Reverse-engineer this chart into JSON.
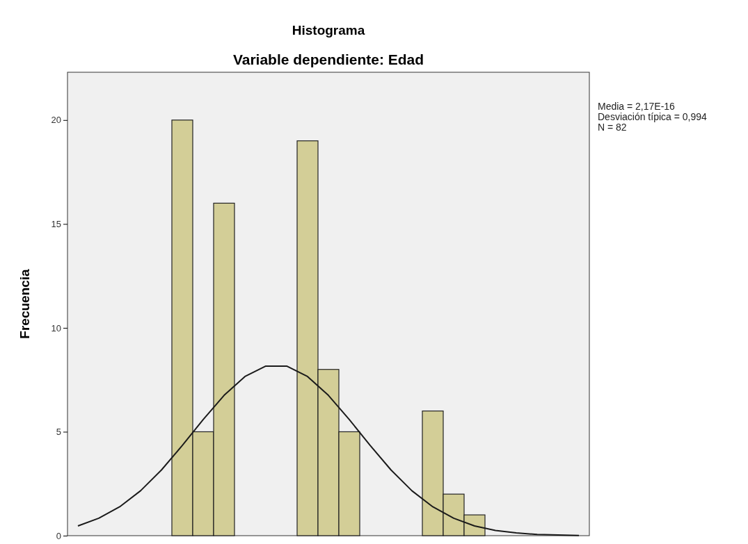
{
  "chart_data": {
    "type": "bar",
    "title": "Histograma",
    "subtitle": "Variable dependiente: Edad",
    "ylabel": "Frecuencia",
    "annotations": [
      "Media = 2,17E-16",
      "Desviación típica = 0,994",
      "N = 82"
    ],
    "categories": [
      null,
      null,
      null,
      null,
      null,
      null,
      null,
      null,
      null,
      null,
      null,
      null,
      null,
      null,
      null,
      null,
      null,
      null,
      null,
      null,
      null,
      null,
      null,
      null,
      null
    ],
    "series": [
      {
        "color": "#d3ce97",
        "values": [
          0,
          0,
          0,
          0,
          0,
          20,
          5,
          16,
          0,
          0,
          0,
          19,
          8,
          5,
          0,
          0,
          0,
          6,
          2,
          1,
          0,
          0,
          0,
          0,
          0
        ]
      },
      {
        "type": "line",
        "color": "#1a1a1a",
        "values": [
          0.47,
          0.84,
          1.39,
          2.16,
          3.16,
          4.34,
          5.59,
          6.75,
          7.66,
          8.16,
          8.16,
          7.66,
          6.75,
          5.59,
          4.34,
          3.16,
          2.16,
          1.39,
          0.84,
          0.47,
          0.25,
          0.13,
          0.06,
          0.03,
          0.01
        ]
      }
    ],
    "ylim": [
      0,
      22.3
    ],
    "yticks": [
      0,
      5,
      10,
      15,
      20
    ],
    "tick_labels": "y",
    "grid": false
  }
}
